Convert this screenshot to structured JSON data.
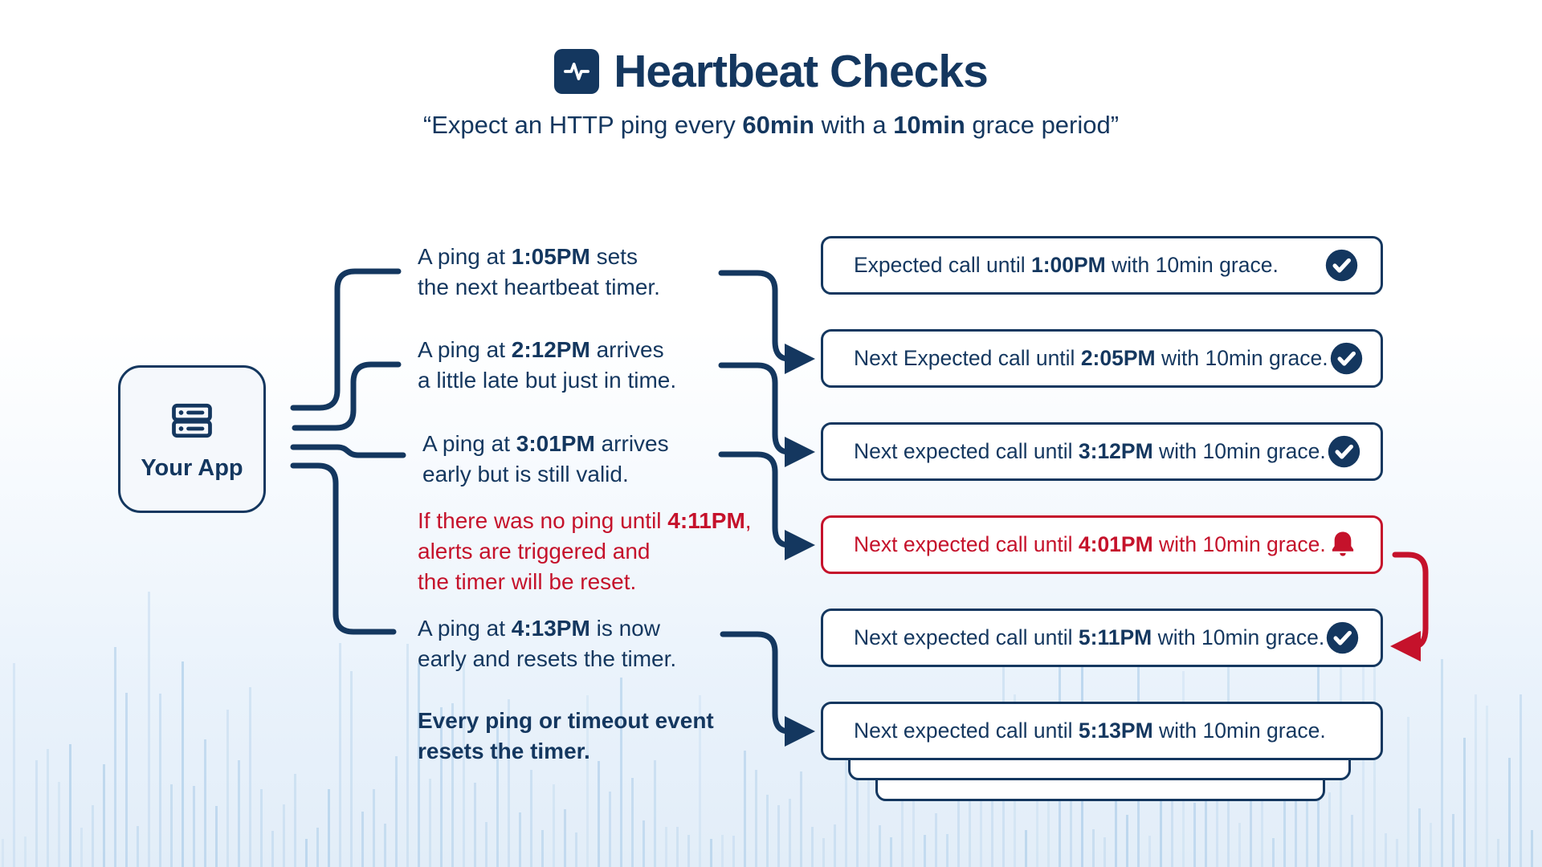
{
  "colors": {
    "navy": "#14375F",
    "red": "#C5122B",
    "box_bg": "#FFFFFF",
    "app_bg": "#F5F8FC",
    "bar": "#A9CBE8",
    "bg_bottom": "#E2EDF8"
  },
  "header": {
    "icon": "activity-icon",
    "title": "Heartbeat Checks",
    "subtitle": {
      "pre": "“Expect an HTTP ping every ",
      "bold1": "60min",
      "mid": " with a ",
      "bold2": "10min",
      "post": " grace period”"
    }
  },
  "app": {
    "icon": "server-icon",
    "label": "Your App"
  },
  "notes": [
    {
      "pre": "A ping at ",
      "time": "1:05PM",
      "post": " sets\nthe next heartbeat timer."
    },
    {
      "pre": "A ping at ",
      "time": "2:12PM",
      "post": " arrives\na little late but just in time."
    },
    {
      "pre": "A ping at ",
      "time": "3:01PM",
      "post": " arrives\nearly but is still valid."
    },
    {
      "pre": "If there was no ping until ",
      "time": "4:11PM",
      "post": ",\nalerts are triggered and\nthe timer will be reset."
    },
    {
      "pre": "A ping at ",
      "time": "4:13PM",
      "post": " is now\nearly and resets the timer."
    },
    {
      "text": "Every ping or timeout event\nresets the timer."
    }
  ],
  "boxes": [
    {
      "pre": "Expected call until ",
      "time": "1:00PM",
      "post": " with 10min grace.",
      "icon": "check-circle-icon",
      "status": "ok"
    },
    {
      "pre": "Next Expected call until ",
      "time": "2:05PM",
      "post": " with 10min grace.",
      "icon": "check-circle-icon",
      "status": "ok"
    },
    {
      "pre": "Next expected call until ",
      "time": "3:12PM",
      "post": " with 10min grace.",
      "icon": "check-circle-icon",
      "status": "ok"
    },
    {
      "pre": "Next expected call until ",
      "time": "4:01PM",
      "post": " with 10min grace.",
      "icon": "bell-icon",
      "status": "alert"
    },
    {
      "pre": "Next expected call until ",
      "time": "5:11PM",
      "post": " with 10min grace.",
      "icon": "check-circle-icon",
      "status": "ok"
    },
    {
      "pre": "Next expected call until ",
      "time": "5:13PM",
      "post": " with 10min grace.",
      "icon": null,
      "status": "ok"
    }
  ]
}
